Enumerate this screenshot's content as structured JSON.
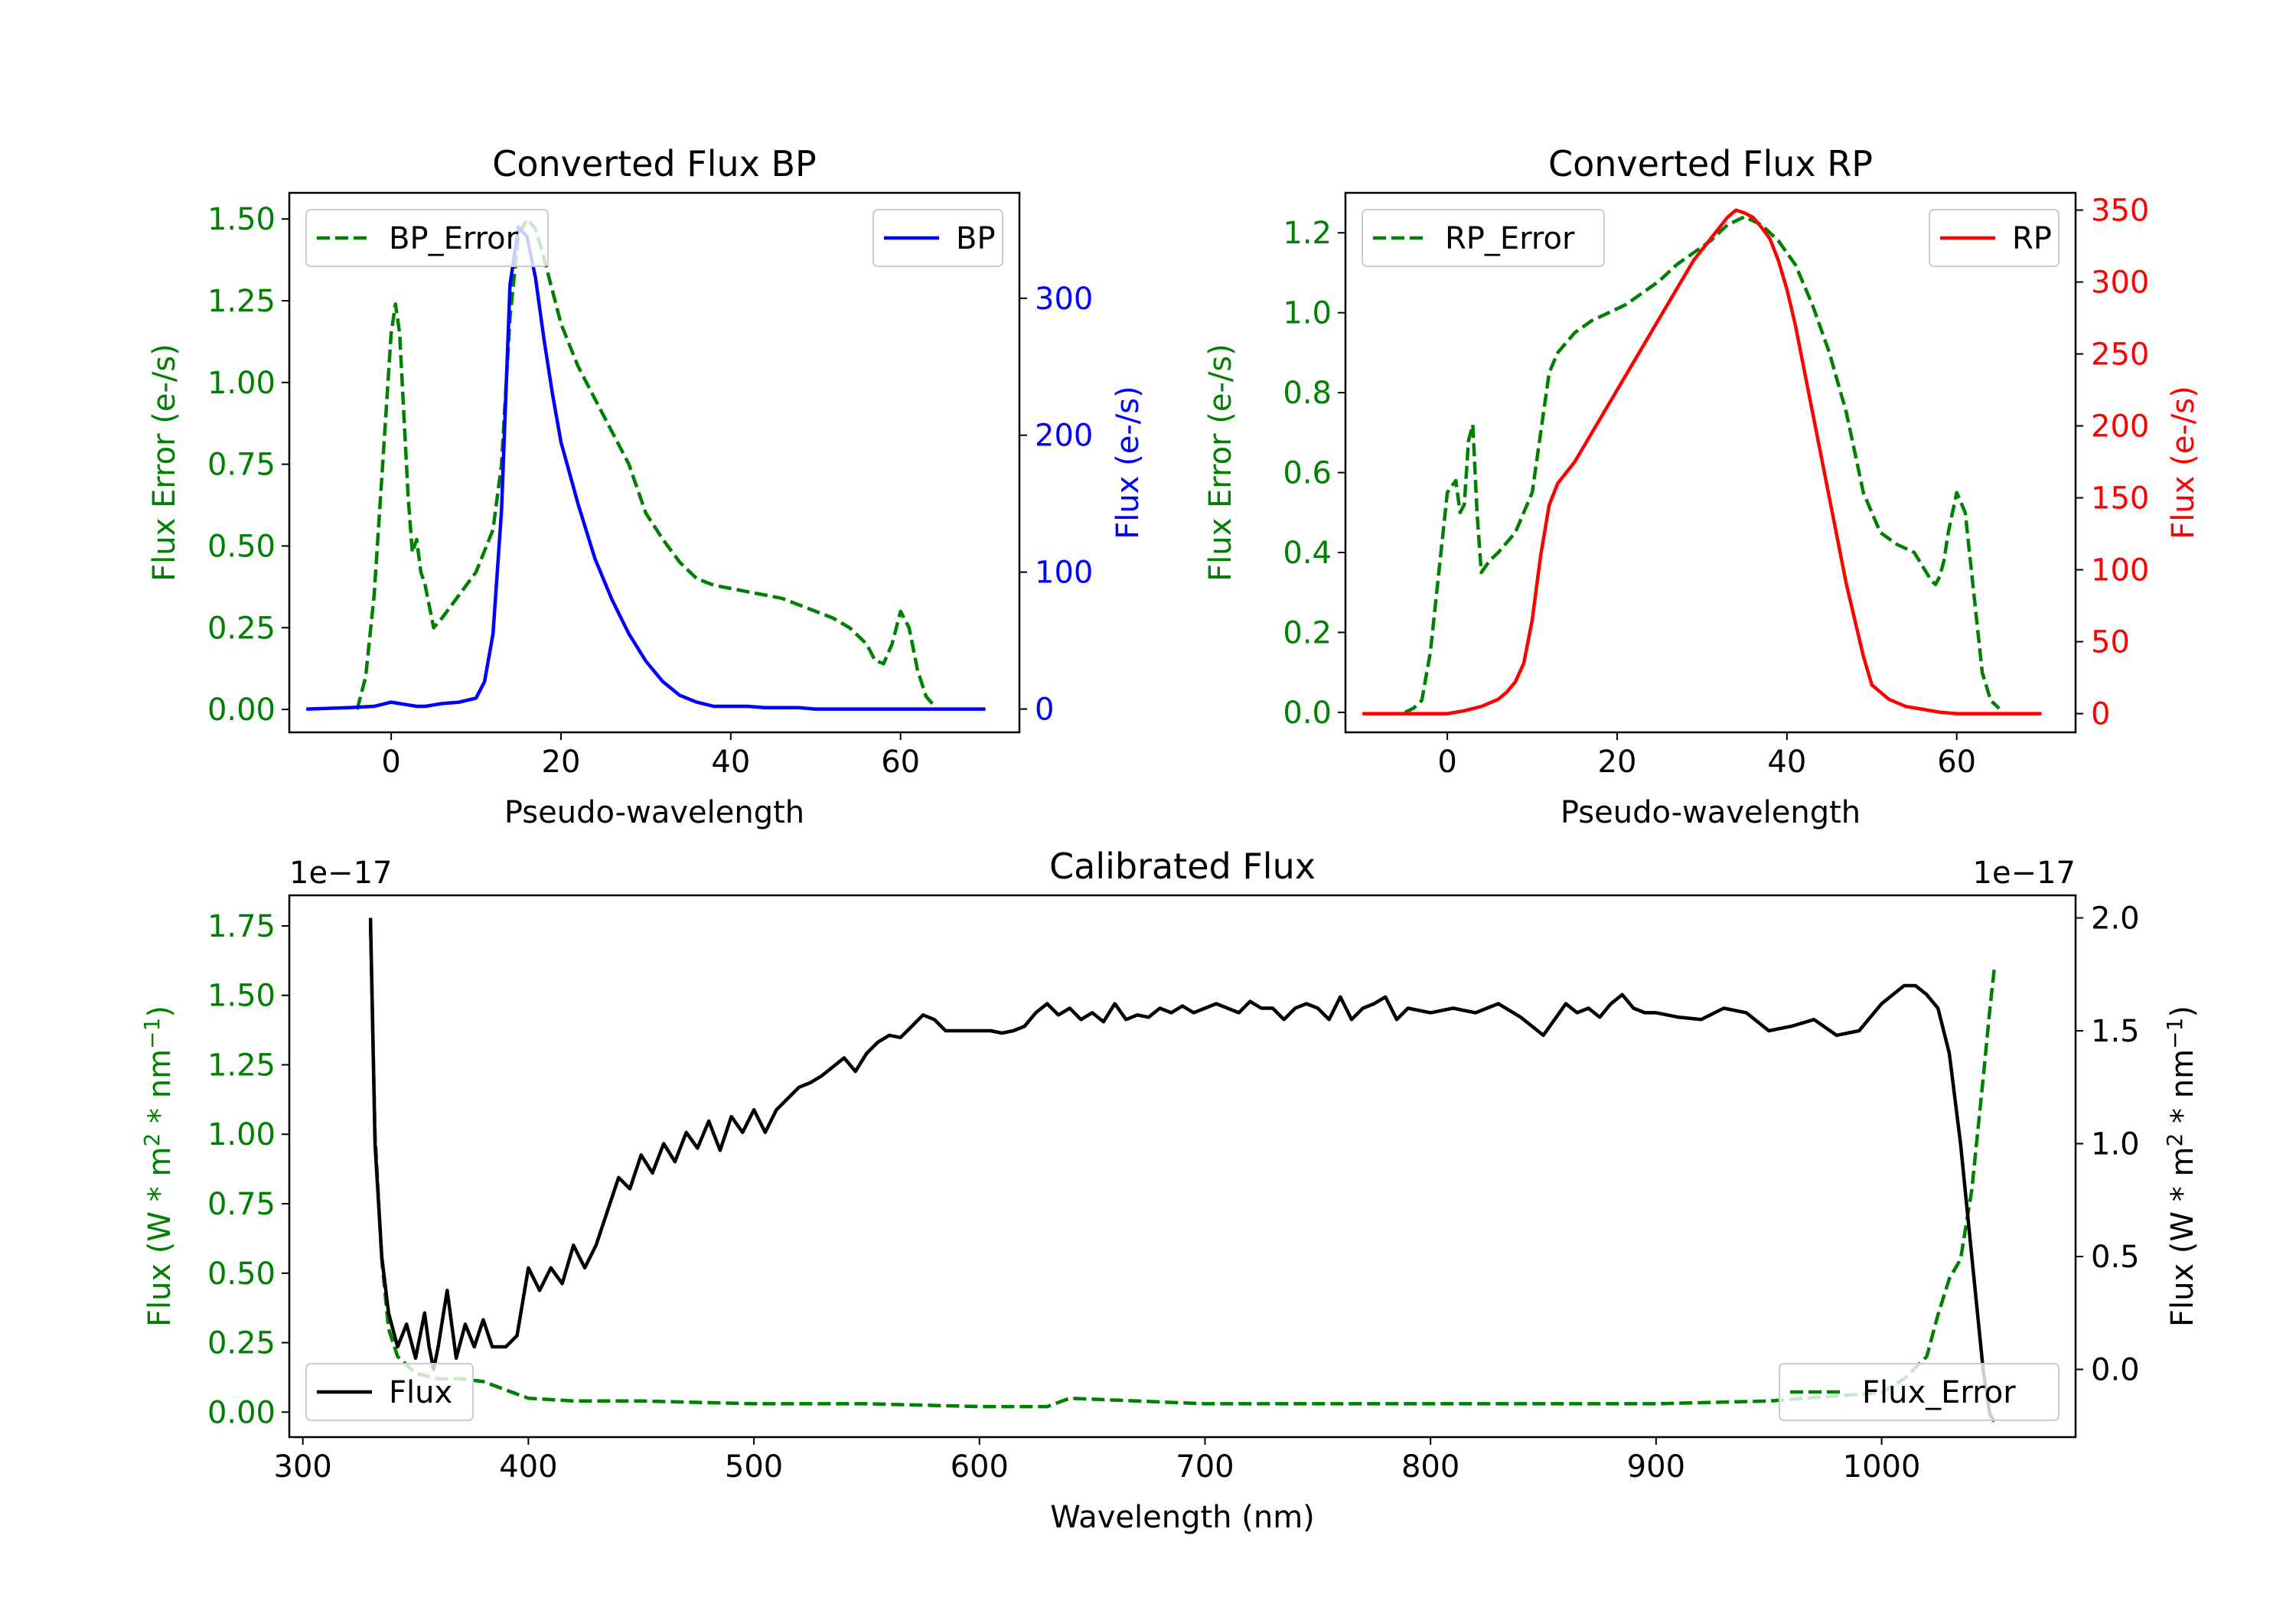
{
  "chart_data": [
    {
      "type": "line",
      "title": "Converted Flux BP",
      "xlabel": "Pseudo-wavelength",
      "xlim": [
        -12,
        74
      ],
      "xticks": [
        0,
        20,
        40,
        60
      ],
      "ylabel_left": "Flux Error (e-/s)",
      "ylim_left": [
        -0.07,
        1.58
      ],
      "yticks_left": [
        "0.00",
        "0.25",
        "0.50",
        "0.75",
        "1.00",
        "1.25",
        "1.50"
      ],
      "ylabel_right": "Flux (e-/s)",
      "ylim_right": [
        -17,
        377
      ],
      "yticks_right": [
        "0",
        "100",
        "200",
        "300"
      ],
      "colors": {
        "left": "#008000",
        "right": "#0000ff"
      },
      "series": [
        {
          "name": "BP_Error",
          "axis": "left",
          "style": "dashed",
          "color": "#008000",
          "x": [
            -4,
            -3,
            -2,
            -1,
            0,
            0.5,
            1,
            2,
            2.5,
            3,
            3.5,
            4,
            5,
            6,
            8,
            10,
            12,
            13,
            14,
            15,
            16,
            17,
            18,
            19,
            20,
            22,
            24,
            26,
            28,
            30,
            32,
            34,
            36,
            38,
            40,
            42,
            44,
            46,
            48,
            50,
            52,
            54,
            56,
            57,
            58,
            59,
            60,
            61,
            62,
            63,
            64
          ],
          "y": [
            0.0,
            0.1,
            0.35,
            0.75,
            1.15,
            1.24,
            1.15,
            0.65,
            0.48,
            0.52,
            0.42,
            0.38,
            0.25,
            0.28,
            0.35,
            0.42,
            0.55,
            0.75,
            1.2,
            1.45,
            1.5,
            1.47,
            1.38,
            1.28,
            1.18,
            1.05,
            0.95,
            0.85,
            0.75,
            0.6,
            0.52,
            0.45,
            0.4,
            0.38,
            0.37,
            0.36,
            0.35,
            0.34,
            0.32,
            0.3,
            0.28,
            0.25,
            0.2,
            0.15,
            0.14,
            0.2,
            0.3,
            0.25,
            0.12,
            0.04,
            0.01
          ]
        },
        {
          "name": "BP",
          "axis": "right",
          "style": "solid",
          "color": "#0000ff",
          "x": [
            -10,
            -5,
            -2,
            0,
            1,
            2,
            3,
            4,
            5,
            6,
            8,
            10,
            11,
            12,
            13,
            14,
            15,
            16,
            17,
            18,
            19,
            20,
            22,
            24,
            26,
            28,
            30,
            32,
            34,
            36,
            38,
            40,
            42,
            44,
            46,
            48,
            50,
            52,
            54,
            56,
            58,
            60,
            62,
            64,
            66,
            68,
            70
          ],
          "y": [
            0,
            1,
            2,
            5,
            4,
            3,
            2,
            2,
            3,
            4,
            5,
            8,
            20,
            55,
            145,
            310,
            352,
            345,
            315,
            270,
            230,
            195,
            150,
            110,
            80,
            55,
            35,
            20,
            10,
            5,
            2,
            2,
            2,
            1,
            1,
            1,
            0,
            0,
            0,
            0,
            0,
            0,
            0,
            0,
            0,
            0,
            0
          ]
        }
      ],
      "legend": [
        {
          "label": "BP_Error",
          "placement": "upper-left"
        },
        {
          "label": "BP",
          "placement": "upper-right"
        }
      ]
    },
    {
      "type": "line",
      "title": "Converted Flux RP",
      "xlabel": "Pseudo-wavelength",
      "xlim": [
        -12,
        74
      ],
      "xticks": [
        0,
        20,
        40,
        60
      ],
      "ylabel_left": "Flux Error (e-/s)",
      "ylim_left": [
        -0.05,
        1.3
      ],
      "yticks_left": [
        "0.0",
        "0.2",
        "0.4",
        "0.6",
        "0.8",
        "1.0",
        "1.2"
      ],
      "ylabel_right": "Flux (e-/s)",
      "ylim_right": [
        -13,
        362
      ],
      "yticks_right": [
        "0",
        "50",
        "100",
        "150",
        "200",
        "250",
        "300",
        "350"
      ],
      "colors": {
        "left": "#008000",
        "right": "#ff0000"
      },
      "series": [
        {
          "name": "RP_Error",
          "axis": "left",
          "style": "dashed",
          "color": "#008000",
          "x": [
            -5,
            -4,
            -3,
            -2,
            -1,
            0,
            1,
            1.5,
            2,
            2.5,
            3,
            3.5,
            4,
            5,
            6,
            8,
            10,
            11,
            12,
            13,
            15,
            17,
            19,
            21,
            23,
            25,
            27,
            29,
            31,
            33,
            35,
            37,
            39,
            41,
            43,
            45,
            47,
            49,
            51,
            53,
            55,
            57,
            57.5,
            58,
            58.5,
            59,
            60,
            61,
            62,
            63,
            64,
            65
          ],
          "y": [
            0.0,
            0.01,
            0.03,
            0.15,
            0.35,
            0.55,
            0.58,
            0.5,
            0.52,
            0.68,
            0.72,
            0.5,
            0.35,
            0.38,
            0.4,
            0.45,
            0.55,
            0.7,
            0.85,
            0.9,
            0.95,
            0.98,
            1.0,
            1.02,
            1.05,
            1.08,
            1.12,
            1.15,
            1.18,
            1.22,
            1.24,
            1.22,
            1.18,
            1.12,
            1.02,
            0.9,
            0.75,
            0.55,
            0.45,
            0.42,
            0.4,
            0.33,
            0.32,
            0.34,
            0.38,
            0.45,
            0.55,
            0.5,
            0.3,
            0.1,
            0.03,
            0.01
          ]
        },
        {
          "name": "RP",
          "axis": "right",
          "style": "solid",
          "color": "#ff0000",
          "x": [
            -10,
            -5,
            0,
            2,
            4,
            6,
            7,
            8,
            9,
            10,
            11,
            12,
            13,
            15,
            17,
            19,
            21,
            23,
            25,
            27,
            29,
            31,
            33,
            34,
            35,
            36,
            37,
            38,
            39,
            40,
            41,
            42,
            43,
            44,
            45,
            46,
            47,
            48,
            49,
            50,
            52,
            54,
            56,
            58,
            60,
            62,
            65,
            70
          ],
          "y": [
            0,
            0,
            0,
            2,
            5,
            10,
            15,
            22,
            35,
            65,
            110,
            145,
            160,
            175,
            195,
            215,
            235,
            255,
            275,
            295,
            315,
            330,
            345,
            350,
            348,
            345,
            338,
            330,
            315,
            295,
            270,
            240,
            210,
            180,
            150,
            120,
            90,
            65,
            40,
            20,
            10,
            5,
            3,
            1,
            0,
            0,
            0,
            0
          ]
        }
      ],
      "legend": [
        {
          "label": "RP_Error",
          "placement": "upper-left"
        },
        {
          "label": "RP",
          "placement": "upper-right"
        }
      ]
    },
    {
      "type": "line",
      "title": "Calibrated Flux",
      "xlabel": "Wavelength (nm)",
      "xlim": [
        294,
        1086
      ],
      "xticks": [
        300,
        400,
        500,
        600,
        700,
        800,
        900,
        1000
      ],
      "ylabel_left": "Flux (W * m",
      "ylabel_right": "Flux (W * m",
      "ylabel_superscripts": [
        "2",
        "−1"
      ],
      "ylabel_mid": " * nm",
      "ylabel_end": ")",
      "ylim_left": [
        -0.09,
        1.86
      ],
      "yticks_left": [
        "0.00",
        "0.25",
        "0.50",
        "0.75",
        "1.00",
        "1.25",
        "1.50",
        "1.75"
      ],
      "offset_left": "1e−17",
      "ylim_right": [
        -0.3,
        2.1
      ],
      "yticks_right": [
        "0.0",
        "0.5",
        "1.0",
        "1.5",
        "2.0"
      ],
      "offset_right": "1e−17",
      "colors": {
        "left": "#008000",
        "right": "#000000"
      },
      "series": [
        {
          "name": "Flux_Error",
          "axis": "left",
          "style": "dashed",
          "color": "#008000",
          "x": [
            330,
            332,
            335,
            338,
            342,
            350,
            360,
            370,
            380,
            390,
            400,
            420,
            450,
            500,
            550,
            600,
            630,
            640,
            700,
            800,
            900,
            950,
            1000,
            1010,
            1020,
            1025,
            1030,
            1035,
            1040,
            1045,
            1048,
            1050
          ],
          "y": [
            1.75,
            1.0,
            0.55,
            0.3,
            0.2,
            0.14,
            0.12,
            0.12,
            0.11,
            0.08,
            0.05,
            0.04,
            0.04,
            0.03,
            0.03,
            0.02,
            0.02,
            0.05,
            0.03,
            0.03,
            0.03,
            0.04,
            0.07,
            0.12,
            0.2,
            0.35,
            0.48,
            0.55,
            0.8,
            1.2,
            1.45,
            1.6
          ]
        },
        {
          "name": "Flux",
          "axis": "right",
          "style": "solid",
          "color": "#000000",
          "x": [
            330,
            332,
            335,
            338,
            342,
            346,
            350,
            354,
            356,
            358,
            360,
            364,
            366,
            368,
            372,
            376,
            380,
            384,
            390,
            395,
            400,
            405,
            410,
            415,
            420,
            425,
            430,
            440,
            445,
            450,
            455,
            460,
            465,
            470,
            475,
            480,
            485,
            490,
            495,
            500,
            505,
            510,
            515,
            520,
            525,
            530,
            540,
            545,
            550,
            555,
            560,
            565,
            570,
            575,
            580,
            585,
            590,
            600,
            605,
            610,
            615,
            620,
            625,
            630,
            635,
            640,
            645,
            650,
            655,
            660,
            665,
            670,
            675,
            680,
            685,
            690,
            695,
            700,
            705,
            710,
            715,
            720,
            725,
            730,
            735,
            740,
            745,
            750,
            755,
            760,
            765,
            770,
            775,
            780,
            785,
            790,
            800,
            810,
            820,
            830,
            840,
            850,
            855,
            860,
            865,
            870,
            875,
            880,
            885,
            890,
            895,
            900,
            910,
            920,
            930,
            940,
            950,
            960,
            970,
            980,
            990,
            1000,
            1005,
            1010,
            1015,
            1020,
            1025,
            1030,
            1035,
            1040,
            1045,
            1048,
            1050
          ],
          "y": [
            2.0,
            1.0,
            0.5,
            0.25,
            0.1,
            0.2,
            0.05,
            0.25,
            0.1,
            0.0,
            0.1,
            0.35,
            0.2,
            0.05,
            0.2,
            0.1,
            0.22,
            0.1,
            0.1,
            0.15,
            0.45,
            0.35,
            0.45,
            0.38,
            0.55,
            0.45,
            0.55,
            0.85,
            0.8,
            0.95,
            0.87,
            1.0,
            0.92,
            1.05,
            0.98,
            1.1,
            0.97,
            1.12,
            1.05,
            1.15,
            1.05,
            1.15,
            1.2,
            1.25,
            1.27,
            1.3,
            1.38,
            1.32,
            1.4,
            1.45,
            1.48,
            1.47,
            1.52,
            1.57,
            1.55,
            1.5,
            1.5,
            1.5,
            1.5,
            1.49,
            1.5,
            1.52,
            1.58,
            1.62,
            1.57,
            1.6,
            1.55,
            1.58,
            1.54,
            1.62,
            1.55,
            1.57,
            1.56,
            1.6,
            1.58,
            1.61,
            1.58,
            1.6,
            1.62,
            1.6,
            1.58,
            1.63,
            1.6,
            1.6,
            1.55,
            1.6,
            1.62,
            1.6,
            1.55,
            1.65,
            1.55,
            1.6,
            1.62,
            1.65,
            1.55,
            1.6,
            1.58,
            1.6,
            1.58,
            1.62,
            1.56,
            1.48,
            1.55,
            1.62,
            1.58,
            1.6,
            1.56,
            1.62,
            1.66,
            1.6,
            1.58,
            1.58,
            1.56,
            1.55,
            1.6,
            1.58,
            1.5,
            1.52,
            1.55,
            1.48,
            1.5,
            1.62,
            1.66,
            1.7,
            1.7,
            1.66,
            1.6,
            1.4,
            1.0,
            0.5,
            0.0,
            -0.2,
            -0.23
          ]
        }
      ],
      "legend": [
        {
          "label": "Flux",
          "placement": "lower-left"
        },
        {
          "label": "Flux_Error",
          "placement": "lower-right"
        }
      ]
    }
  ]
}
